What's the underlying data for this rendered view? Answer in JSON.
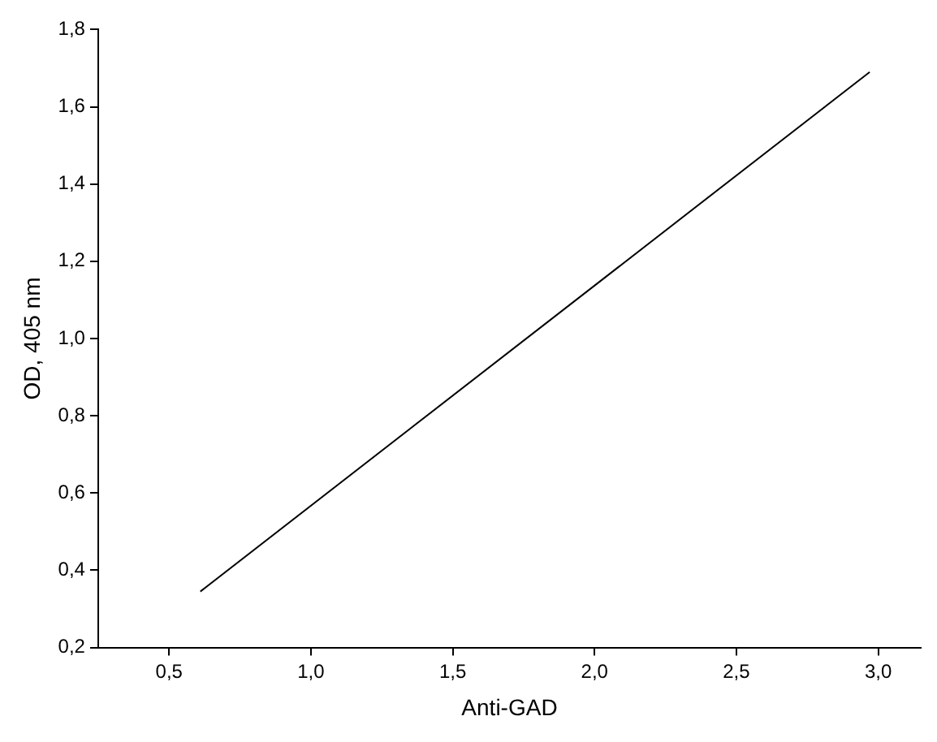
{
  "chart_data": {
    "type": "line",
    "xlabel": "Anti-GAD",
    "ylabel": "OD, 405 nm",
    "series": [
      {
        "color": "#000000",
        "x": [
          0.61,
          2.97
        ],
        "values": [
          0.345,
          1.69
        ]
      }
    ],
    "xlim": [
      0.25,
      3.15
    ],
    "xticks": [
      {
        "value": 0.5,
        "label": "0,5"
      },
      {
        "value": 1,
        "label": "1,0"
      },
      {
        "value": 1.5,
        "label": "1,5"
      },
      {
        "value": 2,
        "label": "2,0"
      },
      {
        "value": 2.5,
        "label": "2,5"
      },
      {
        "value": 3,
        "label": "3,0"
      }
    ],
    "ylim": [
      0.2,
      1.8
    ],
    "yticks": [
      {
        "value": 0.2,
        "label": "0,2"
      },
      {
        "value": 0.4,
        "label": "0,4"
      },
      {
        "value": 0.6,
        "label": "0,6"
      },
      {
        "value": 0.8,
        "label": "0,8"
      },
      {
        "value": 1,
        "label": "1,0"
      },
      {
        "value": 1.2,
        "label": "1,2"
      },
      {
        "value": 1.4,
        "label": "1,4"
      },
      {
        "value": 1.6,
        "label": "1,6"
      },
      {
        "value": 1.8,
        "label": "1,8"
      }
    ],
    "grid": false,
    "legend": false,
    "marker": "none",
    "line_style": "solid"
  }
}
